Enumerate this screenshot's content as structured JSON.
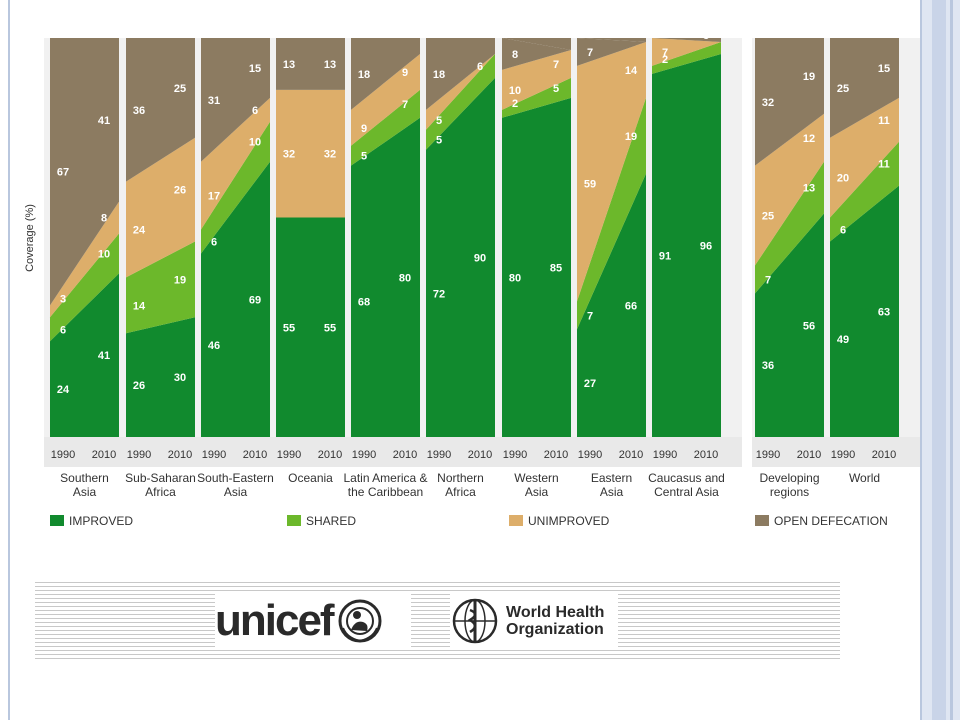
{
  "chart_data": {
    "type": "area",
    "ylabel": "Coverage (%)",
    "x": [
      "1990",
      "2010"
    ],
    "ylim": [
      0,
      100
    ],
    "legend": {
      "placement": "bottom",
      "entries": [
        {
          "name": "IMPROVED",
          "color": "#118a2e"
        },
        {
          "name": "SHARED",
          "color": "#6cb82b"
        },
        {
          "name": "UNIMPROVED",
          "color": "#ddae6a"
        },
        {
          "name": "OPEN DEFECATION",
          "color": "#8c7b61"
        }
      ]
    },
    "panels": [
      {
        "label": "Southern Asia",
        "improved": [
          24,
          41
        ],
        "shared": [
          6,
          10
        ],
        "unimproved": [
          3,
          8
        ],
        "open_defecation": [
          67,
          41
        ]
      },
      {
        "label": "Sub-Saharan Africa",
        "improved": [
          26,
          30
        ],
        "shared": [
          14,
          19
        ],
        "unimproved": [
          24,
          26
        ],
        "open_defecation": [
          36,
          25
        ]
      },
      {
        "label": "South-Eastern Asia",
        "improved": [
          46,
          69
        ],
        "shared": [
          6,
          10
        ],
        "unimproved": [
          17,
          6
        ],
        "open_defecation": [
          31,
          15
        ]
      },
      {
        "label": "Oceania",
        "improved": [
          55,
          55
        ],
        "shared": [
          0,
          0
        ],
        "unimproved": [
          32,
          32
        ],
        "open_defecation": [
          13,
          13
        ]
      },
      {
        "label": "Latin America & the Caribbean",
        "improved": [
          68,
          80
        ],
        "shared": [
          5,
          7
        ],
        "unimproved": [
          9,
          9
        ],
        "open_defecation": [
          18,
          4
        ]
      },
      {
        "label": "Northern Africa",
        "improved": [
          72,
          90
        ],
        "shared": [
          5,
          6
        ],
        "unimproved": [
          5,
          0
        ],
        "open_defecation": [
          18,
          4
        ]
      },
      {
        "label": "Western Asia",
        "improved": [
          80,
          85
        ],
        "shared": [
          2,
          5
        ],
        "unimproved": [
          10,
          7
        ],
        "open_defecation": [
          8,
          0
        ]
      },
      {
        "label": "Eastern Asia",
        "improved": [
          27,
          66
        ],
        "shared": [
          7,
          19
        ],
        "unimproved": [
          59,
          14
        ],
        "open_defecation": [
          7,
          0
        ]
      },
      {
        "label": "Caucasus and Central Asia",
        "improved": [
          91,
          96
        ],
        "shared": [
          2,
          3
        ],
        "unimproved": [
          7,
          0
        ],
        "open_defecation": [
          0,
          0
        ]
      },
      {
        "label": "Developing regions",
        "improved": [
          36,
          56
        ],
        "shared": [
          7,
          13
        ],
        "unimproved": [
          25,
          12
        ],
        "open_defecation": [
          32,
          19
        ]
      },
      {
        "label": "World",
        "improved": [
          49,
          63
        ],
        "shared": [
          6,
          11
        ],
        "unimproved": [
          20,
          11
        ],
        "open_defecation": [
          25,
          15
        ]
      }
    ],
    "hidden_labels": {
      "Oceania": [
        "shared"
      ],
      "Northern Africa": [
        "unimproved_2010"
      ],
      "Western Asia": [
        "open_defecation_2010"
      ],
      "Eastern Asia": [
        "open_defecation_2010"
      ],
      "Caucasus and Central Asia": [
        "open_defecation_1990",
        "open_defecation_2010",
        "unimproved_2010"
      ]
    },
    "region_labels_lines": {
      "Southern Asia": [
        "Southern",
        "Asia"
      ],
      "Sub-Saharan Africa": [
        "Sub-Saharan",
        "Africa"
      ],
      "South-Eastern Asia": [
        "South-Eastern",
        "Asia"
      ],
      "Oceania": [
        "Oceania"
      ],
      "Latin America & the Caribbean": [
        "Latin America &",
        "the Caribbean"
      ],
      "Northern Africa": [
        "Northern",
        "Africa"
      ],
      "Western Asia": [
        "Western",
        "Asia"
      ],
      "Eastern Asia": [
        "Eastern",
        "Asia"
      ],
      "Caucasus and Central Asia": [
        "Caucasus and",
        "Central Asia"
      ],
      "Developing regions": [
        "Developing",
        "regions"
      ],
      "World": [
        "World"
      ]
    }
  },
  "logos": {
    "unicef": "unicef",
    "who_line1": "World Health",
    "who_line2": "Organization"
  }
}
